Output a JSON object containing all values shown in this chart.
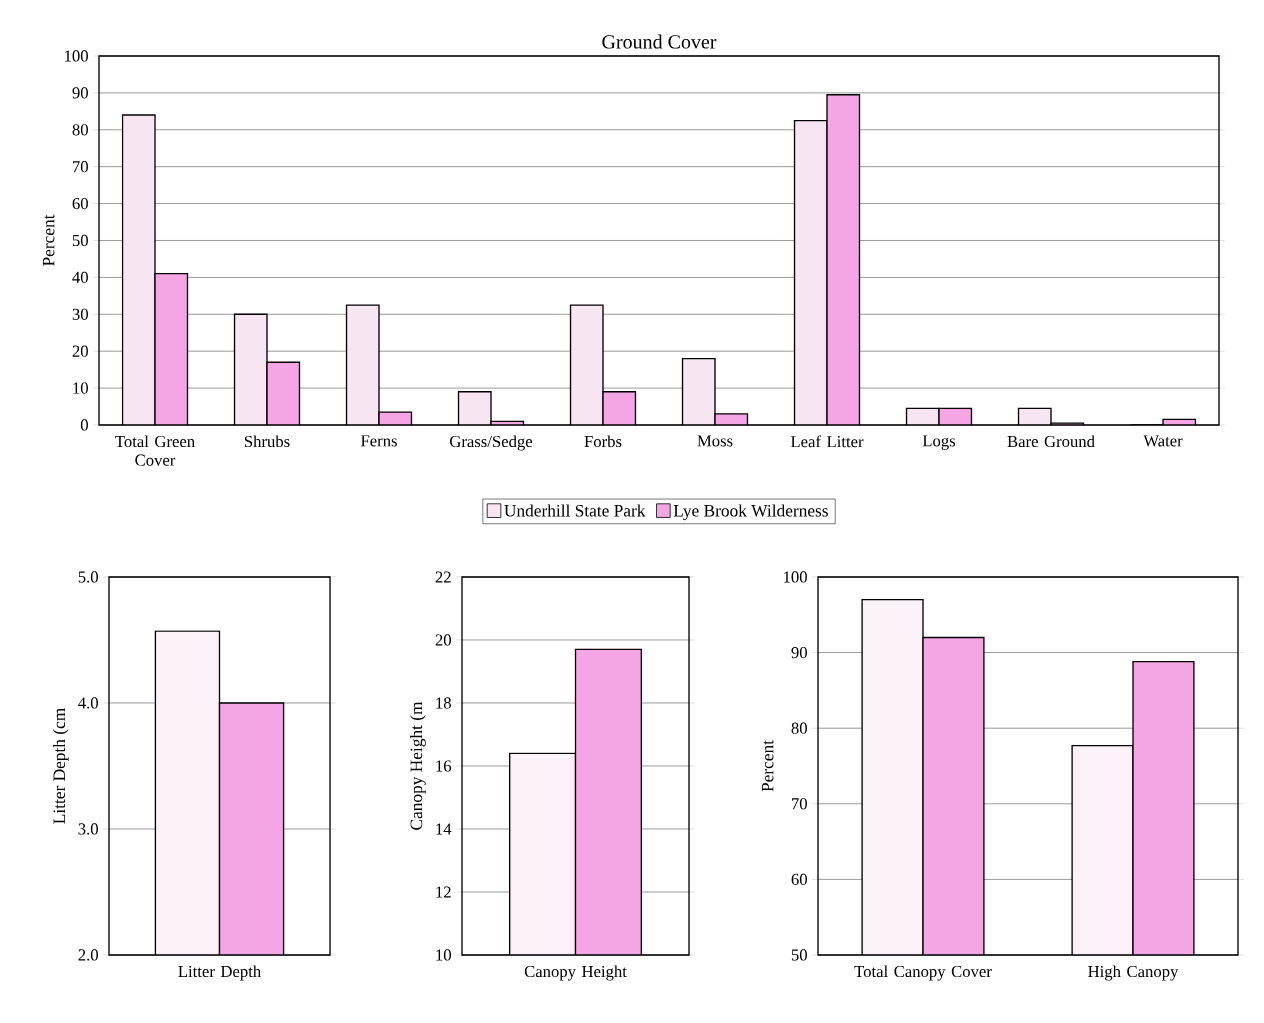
{
  "chart_data": [
    {
      "type": "bar",
      "title": "Ground Cover",
      "ylabel": "Percent",
      "categories": [
        "Total Green Cover",
        "Shrubs",
        "Ferns",
        "Grass/Sedge",
        "Forbs",
        "Moss",
        "Leaf Litter",
        "Logs",
        "Bare Ground",
        "Water"
      ],
      "series": [
        {
          "name": "Underhill State Park",
          "color": "#f7e6f2",
          "values": [
            84,
            30,
            32.5,
            9,
            32.5,
            18,
            82.5,
            4.5,
            4.5,
            0
          ]
        },
        {
          "name": "Lye Brook Wilderness",
          "color": "#f4a6e4",
          "values": [
            41,
            17,
            3.5,
            1,
            9,
            3,
            89.5,
            4.5,
            0.5,
            1.5
          ]
        }
      ],
      "ylim": [
        0,
        100
      ],
      "yticks": [
        0,
        10,
        20,
        30,
        40,
        50,
        60,
        70,
        80,
        90,
        100
      ],
      "grid": "y",
      "legend": "bottom"
    },
    {
      "type": "bar",
      "ylabel": "Litter Depth (cm",
      "categories": [
        "Litter Depth"
      ],
      "series": [
        {
          "color": "#fbf2f9",
          "values": [
            4.57
          ]
        },
        {
          "color": "#f4a6e4",
          "values": [
            4.0
          ]
        }
      ],
      "ylim": [
        2,
        5
      ],
      "yticks": [
        {
          "value": 2,
          "label": "2.0"
        },
        {
          "value": 3,
          "label": "3.0"
        },
        {
          "value": 4,
          "label": "4.0"
        },
        {
          "value": 5,
          "label": "5.0"
        }
      ],
      "grid": "y"
    },
    {
      "type": "bar",
      "ylabel": "Canopy Height (m",
      "categories": [
        "Canopy Height"
      ],
      "series": [
        {
          "color": "#fbf2f9",
          "values": [
            16.4
          ]
        },
        {
          "color": "#f4a6e4",
          "values": [
            19.7
          ]
        }
      ],
      "ylim": [
        10,
        22
      ],
      "yticks": [
        10,
        12,
        14,
        16,
        18,
        20,
        22
      ],
      "grid": "y"
    },
    {
      "type": "bar",
      "ylabel": "Percent",
      "categories": [
        "Total Canopy Cover",
        "High Canopy"
      ],
      "series": [
        {
          "color": "#fbf2f9",
          "values": [
            97,
            77.7
          ]
        },
        {
          "color": "#f4a6e4",
          "values": [
            92,
            88.8
          ]
        }
      ],
      "ylim": [
        50,
        100
      ],
      "yticks": [
        50,
        60,
        70,
        80,
        90,
        100
      ],
      "grid": "y"
    }
  ]
}
